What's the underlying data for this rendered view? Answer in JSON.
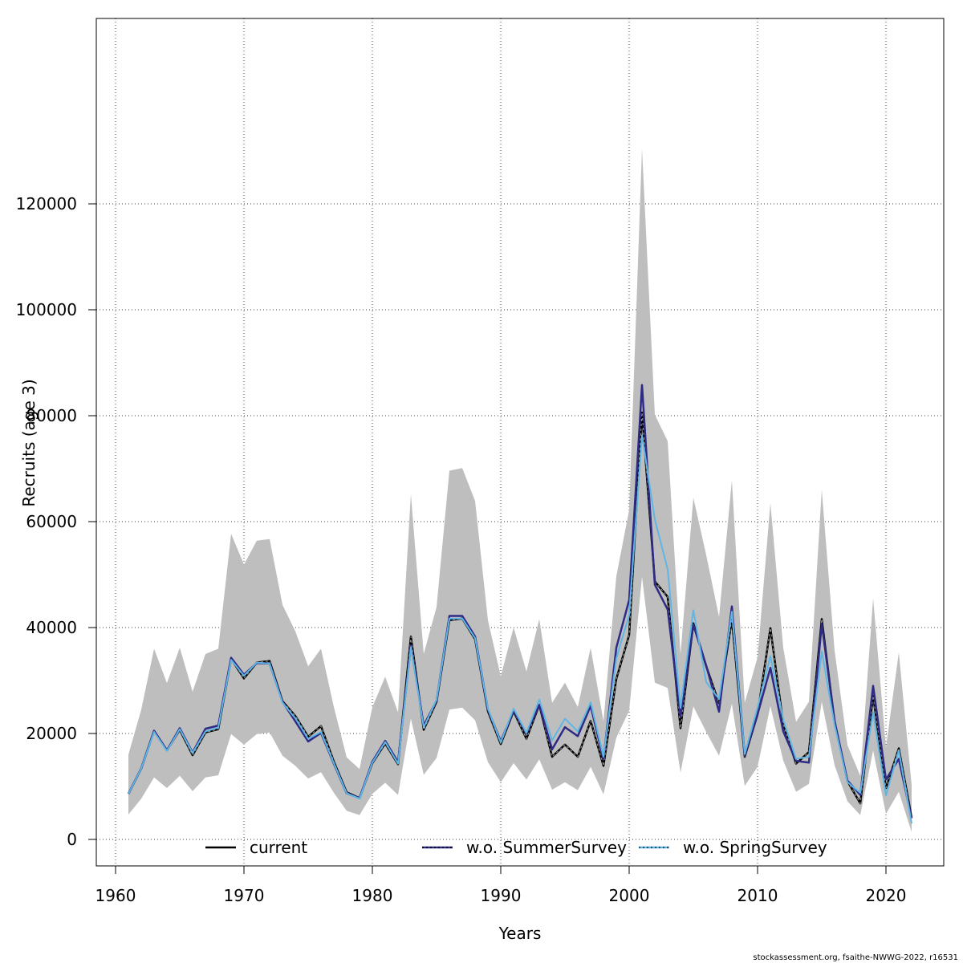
{
  "chart_data": {
    "type": "line",
    "xlabel": "Years",
    "ylabel": "Recruits (age 3)",
    "xlim": [
      1958.5,
      2024.5
    ],
    "ylim": [
      -5000,
      155000
    ],
    "xticks": [
      1960,
      1970,
      1980,
      1990,
      2000,
      2010,
      2020
    ],
    "yticks": [
      0,
      20000,
      40000,
      60000,
      80000,
      100000,
      120000
    ],
    "grid": true,
    "legend_position": "bottom",
    "x": [
      1961,
      1962,
      1963,
      1964,
      1965,
      1966,
      1967,
      1968,
      1969,
      1970,
      1971,
      1972,
      1973,
      1974,
      1975,
      1976,
      1977,
      1978,
      1979,
      1980,
      1981,
      1982,
      1983,
      1984,
      1985,
      1986,
      1987,
      1988,
      1989,
      1990,
      1991,
      1992,
      1993,
      1994,
      1995,
      1996,
      1997,
      1998,
      1999,
      2000,
      2001,
      2002,
      2003,
      2004,
      2005,
      2006,
      2007,
      2008,
      2009,
      2010,
      2011,
      2012,
      2013,
      2014,
      2015,
      2016,
      2017,
      2018,
      2019,
      2020,
      2021,
      2022
    ],
    "confidence_band": {
      "upper": [
        16000,
        24500,
        36000,
        29500,
        36200,
        27900,
        35000,
        36000,
        57700,
        51900,
        56400,
        56700,
        44300,
        39300,
        32700,
        36000,
        25000,
        15500,
        13300,
        25000,
        30700,
        24000,
        65200,
        35000,
        43900,
        69600,
        70100,
        63900,
        41400,
        30800,
        40000,
        31700,
        41600,
        25800,
        29600,
        25000,
        36200,
        22300,
        49700,
        62200,
        130400,
        80200,
        75200,
        35000,
        64500,
        53700,
        42000,
        67800,
        25800,
        34400,
        63500,
        36200,
        22200,
        26000,
        66000,
        35600,
        17800,
        12000,
        45500,
        17400,
        35300,
        10300
      ],
      "lower": [
        4700,
        7700,
        11700,
        9700,
        12000,
        9100,
        11700,
        12100,
        19900,
        17900,
        19900,
        20200,
        15800,
        13900,
        11500,
        12700,
        8800,
        5400,
        4600,
        8600,
        10700,
        8400,
        22800,
        12200,
        15400,
        24500,
        24900,
        22500,
        14600,
        10800,
        14400,
        11300,
        15100,
        9400,
        10800,
        9300,
        13700,
        8500,
        19200,
        24300,
        49600,
        29600,
        28600,
        12600,
        25100,
        20300,
        15800,
        25600,
        10100,
        13700,
        25200,
        14900,
        9000,
        10500,
        26000,
        14000,
        7200,
        4600,
        16800,
        4800,
        9000,
        1400
      ]
    },
    "series": [
      {
        "name": "current",
        "color": "#000000",
        "values": [
          8600,
          13400,
          20500,
          16800,
          20700,
          15900,
          20200,
          20800,
          34100,
          30400,
          33400,
          33700,
          26100,
          23300,
          19400,
          21400,
          14700,
          8900,
          7800,
          14400,
          18100,
          14200,
          38300,
          20700,
          26000,
          41400,
          41700,
          37800,
          24200,
          18000,
          24200,
          19000,
          25400,
          15600,
          17900,
          15600,
          22400,
          13900,
          30300,
          38600,
          80600,
          48700,
          45800,
          21000,
          40800,
          32700,
          25700,
          41600,
          15600,
          23600,
          39900,
          21800,
          14300,
          16500,
          41600,
          22100,
          11000,
          6800,
          27100,
          9700,
          17200,
          4100
        ]
      },
      {
        "name": "w.o. SummerSurvey",
        "color": "#2e2a86",
        "values": [
          8600,
          13400,
          20500,
          16800,
          21000,
          16400,
          20900,
          21500,
          34300,
          31100,
          33300,
          33200,
          26000,
          22300,
          18500,
          20100,
          14300,
          8700,
          7800,
          14700,
          18600,
          14600,
          36600,
          21500,
          26200,
          42200,
          42200,
          38300,
          24500,
          18500,
          24300,
          20000,
          25400,
          17000,
          21200,
          19500,
          25200,
          15200,
          36200,
          45200,
          85800,
          48100,
          43400,
          23200,
          40500,
          32800,
          24100,
          44000,
          15900,
          23600,
          32400,
          20400,
          14800,
          14500,
          40700,
          22400,
          11100,
          8400,
          29000,
          11300,
          15200,
          4000
        ]
      },
      {
        "name": "w.o. SpringSurvey",
        "color": "#5fb6e4",
        "values": [
          8600,
          13400,
          20300,
          16700,
          20800,
          16300,
          20400,
          21100,
          33900,
          30900,
          33400,
          33200,
          25800,
          22900,
          19000,
          20300,
          14400,
          8700,
          7700,
          14500,
          18400,
          14300,
          36300,
          21100,
          26400,
          41700,
          41700,
          38000,
          24700,
          18300,
          24700,
          20100,
          26400,
          18700,
          22800,
          20400,
          25900,
          15600,
          34200,
          42400,
          76300,
          60400,
          51000,
          24800,
          43300,
          29700,
          26500,
          43000,
          16100,
          24900,
          34600,
          22600,
          15200,
          15600,
          35500,
          21600,
          10800,
          8800,
          24000,
          8300,
          16800,
          3000
        ]
      }
    ]
  },
  "footer": "stockassessment.org, fsaithe-NWWG-2022, r16531"
}
